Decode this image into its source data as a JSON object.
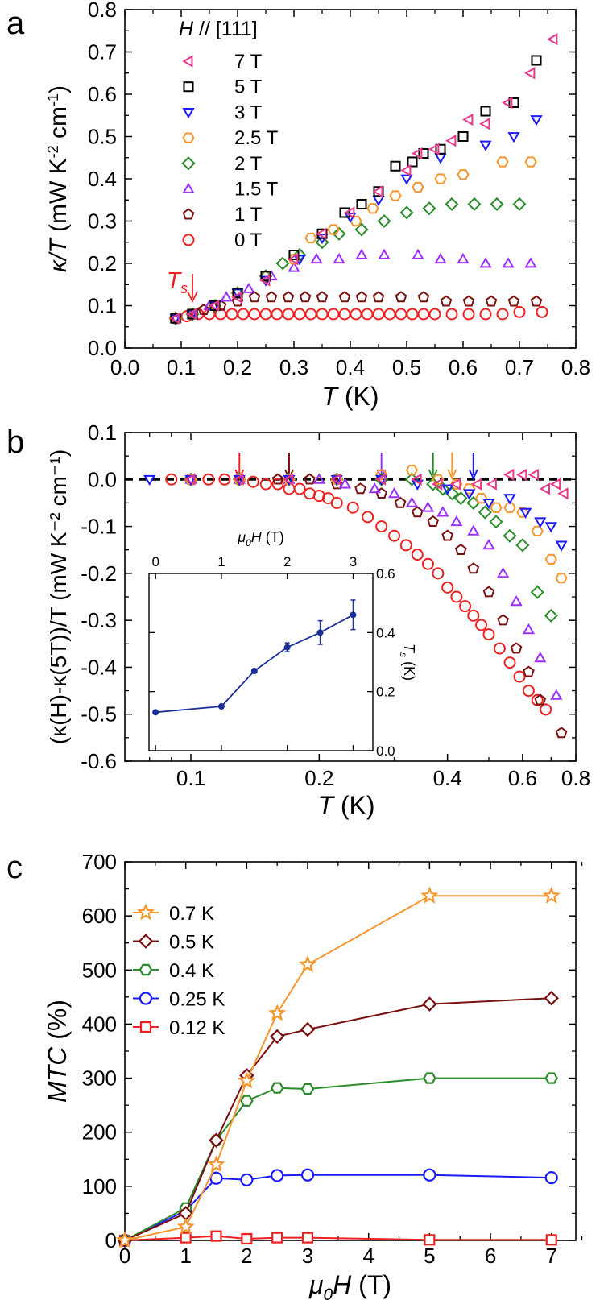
{
  "chart_data": [
    {
      "panel": "a",
      "type": "scatter",
      "panel_label": "a",
      "xlabel": {
        "italic": "T",
        "plain": " (K)"
      },
      "ylabel": {
        "italic": "κ/T",
        "plain": " (mW K",
        "sup1": "-2",
        "mid": " cm",
        "sup2": "-1",
        "end": ")"
      },
      "xlim": [
        0.0,
        0.8
      ],
      "ylim": [
        0.0,
        0.8
      ],
      "xticks": [
        "0.0",
        "0.1",
        "0.2",
        "0.3",
        "0.4",
        "0.5",
        "0.6",
        "0.7",
        "0.8"
      ],
      "yticks": [
        "0.0",
        "0.1",
        "0.2",
        "0.3",
        "0.4",
        "0.5",
        "0.6",
        "0.7",
        "0.8"
      ],
      "legend_title": {
        "italic": "H",
        "plain": " // [111]"
      },
      "annotation": {
        "italic": "T",
        "sub": "s"
      },
      "series": [
        {
          "name": "7 T",
          "marker": "triangle-left",
          "color": "#e8388a",
          "x": [
            0.09,
            0.12,
            0.16,
            0.2,
            0.25,
            0.3,
            0.35,
            0.4,
            0.45,
            0.5,
            0.52,
            0.55,
            0.58,
            0.61,
            0.64,
            0.68,
            0.72,
            0.76
          ],
          "y": [
            0.07,
            0.08,
            0.1,
            0.12,
            0.16,
            0.21,
            0.27,
            0.32,
            0.37,
            0.42,
            0.46,
            0.47,
            0.49,
            0.54,
            0.53,
            0.58,
            0.65,
            0.73
          ]
        },
        {
          "name": "5 T",
          "marker": "square",
          "color": "#000000",
          "x": [
            0.09,
            0.12,
            0.16,
            0.2,
            0.25,
            0.3,
            0.35,
            0.39,
            0.42,
            0.45,
            0.48,
            0.51,
            0.53,
            0.56,
            0.6,
            0.64,
            0.69,
            0.73
          ],
          "y": [
            0.07,
            0.08,
            0.1,
            0.13,
            0.17,
            0.22,
            0.27,
            0.32,
            0.34,
            0.37,
            0.43,
            0.44,
            0.46,
            0.47,
            0.5,
            0.56,
            0.58,
            0.68
          ]
        },
        {
          "name": "3 T",
          "marker": "triangle-down",
          "color": "#1a1aff",
          "x": [
            0.09,
            0.12,
            0.16,
            0.2,
            0.25,
            0.31,
            0.35,
            0.4,
            0.45,
            0.5,
            0.56,
            0.64,
            0.69,
            0.73
          ],
          "y": [
            0.07,
            0.08,
            0.1,
            0.13,
            0.16,
            0.21,
            0.26,
            0.31,
            0.35,
            0.4,
            0.45,
            0.48,
            0.5,
            0.54
          ]
        },
        {
          "name": "2.5 T",
          "marker": "hexagon",
          "color": "#f7962e",
          "x": [
            0.09,
            0.12,
            0.16,
            0.2,
            0.25,
            0.3,
            0.33,
            0.37,
            0.41,
            0.44,
            0.48,
            0.52,
            0.56,
            0.6,
            0.67,
            0.72
          ],
          "y": [
            0.07,
            0.08,
            0.1,
            0.13,
            0.17,
            0.21,
            0.26,
            0.28,
            0.3,
            0.33,
            0.36,
            0.38,
            0.4,
            0.41,
            0.44,
            0.44
          ]
        },
        {
          "name": "2 T",
          "marker": "diamond",
          "color": "#2a8c2a",
          "x": [
            0.09,
            0.12,
            0.16,
            0.2,
            0.25,
            0.28,
            0.31,
            0.35,
            0.38,
            0.42,
            0.46,
            0.5,
            0.54,
            0.58,
            0.62,
            0.66,
            0.7
          ],
          "y": [
            0.07,
            0.08,
            0.1,
            0.13,
            0.17,
            0.2,
            0.22,
            0.25,
            0.27,
            0.28,
            0.3,
            0.32,
            0.33,
            0.34,
            0.34,
            0.34,
            0.34
          ]
        },
        {
          "name": "1.5 T",
          "marker": "triangle-up",
          "color": "#9b30ff",
          "x": [
            0.09,
            0.12,
            0.15,
            0.18,
            0.22,
            0.26,
            0.3,
            0.34,
            0.38,
            0.42,
            0.46,
            0.52,
            0.56,
            0.6,
            0.64,
            0.68,
            0.72
          ],
          "y": [
            0.07,
            0.08,
            0.1,
            0.12,
            0.14,
            0.17,
            0.19,
            0.21,
            0.21,
            0.22,
            0.22,
            0.22,
            0.21,
            0.21,
            0.2,
            0.2,
            0.2
          ]
        },
        {
          "name": "1 T",
          "marker": "pentagon",
          "color": "#7a1010",
          "x": [
            0.09,
            0.12,
            0.14,
            0.17,
            0.2,
            0.23,
            0.26,
            0.29,
            0.32,
            0.35,
            0.39,
            0.42,
            0.45,
            0.49,
            0.53,
            0.57,
            0.61,
            0.65,
            0.69,
            0.73
          ],
          "y": [
            0.07,
            0.08,
            0.09,
            0.1,
            0.11,
            0.12,
            0.12,
            0.12,
            0.12,
            0.12,
            0.12,
            0.12,
            0.12,
            0.12,
            0.12,
            0.11,
            0.11,
            0.11,
            0.11,
            0.11
          ]
        },
        {
          "name": "0 T",
          "marker": "circle",
          "color": "#ee2020",
          "x": [
            0.09,
            0.11,
            0.13,
            0.15,
            0.17,
            0.19,
            0.21,
            0.23,
            0.25,
            0.27,
            0.29,
            0.31,
            0.33,
            0.35,
            0.37,
            0.39,
            0.41,
            0.43,
            0.45,
            0.47,
            0.49,
            0.51,
            0.53,
            0.55,
            0.58,
            0.61,
            0.64,
            0.67,
            0.7,
            0.74
          ],
          "y": [
            0.07,
            0.075,
            0.08,
            0.08,
            0.08,
            0.08,
            0.08,
            0.08,
            0.08,
            0.08,
            0.08,
            0.08,
            0.08,
            0.08,
            0.08,
            0.08,
            0.08,
            0.08,
            0.08,
            0.08,
            0.08,
            0.08,
            0.08,
            0.08,
            0.08,
            0.08,
            0.08,
            0.08,
            0.085,
            0.085
          ]
        }
      ]
    },
    {
      "panel": "b",
      "type": "scatter",
      "panel_label": "b",
      "xscale": "log",
      "xlabel": {
        "italic": "T",
        "plain": " (K)"
      },
      "ylabel": "(κ(H)-κ(5T))/T (mW K⁻² cm⁻¹)",
      "xlim": [
        0.07,
        0.8
      ],
      "ylim": [
        -0.6,
        0.1
      ],
      "xticks": [
        {
          "v": 0.1,
          "t": "0.1"
        },
        {
          "v": 0.2,
          "t": "0.2"
        },
        {
          "v": 0.4,
          "t": "0.4"
        },
        {
          "v": 0.6,
          "t": "0.6"
        },
        {
          "v": 0.8,
          "t": "0.8"
        }
      ],
      "yticks": [
        "0.1",
        "0.0",
        "-0.1",
        "-0.2",
        "-0.3",
        "-0.4",
        "-0.5",
        "-0.6"
      ],
      "arrows": [
        {
          "x": 0.13,
          "color": "#ee2020"
        },
        {
          "x": 0.17,
          "color": "#7a1010"
        },
        {
          "x": 0.28,
          "color": "#9b30ff"
        },
        {
          "x": 0.37,
          "color": "#2a8c2a"
        },
        {
          "x": 0.41,
          "color": "#f7962e"
        },
        {
          "x": 0.46,
          "color": "#1a1aff"
        }
      ],
      "series": [
        {
          "name": "7 T",
          "marker": "triangle-left",
          "color": "#e8388a",
          "x": [
            0.1,
            0.13,
            0.17,
            0.22,
            0.28,
            0.34,
            0.38,
            0.42,
            0.47,
            0.51,
            0.56,
            0.6,
            0.64,
            0.68,
            0.72,
            0.75
          ],
          "y": [
            0,
            0,
            0,
            0,
            0,
            0,
            -0.01,
            -0.01,
            -0.01,
            -0.01,
            0.01,
            0.01,
            0.01,
            -0.02,
            -0.01,
            -0.03
          ]
        },
        {
          "name": "3 T",
          "marker": "triangle-down",
          "color": "#1a1aff",
          "x": [
            0.08,
            0.1,
            0.13,
            0.17,
            0.22,
            0.28,
            0.34,
            0.4,
            0.45,
            0.5,
            0.56,
            0.61,
            0.66,
            0.7,
            0.74
          ],
          "y": [
            0,
            0,
            0,
            0,
            0,
            0,
            -0.01,
            -0.02,
            -0.03,
            -0.05,
            -0.04,
            -0.07,
            -0.09,
            -0.1,
            -0.14
          ]
        },
        {
          "name": "2.5 T",
          "marker": "hexagon",
          "color": "#f7962e",
          "x": [
            0.1,
            0.13,
            0.17,
            0.22,
            0.28,
            0.33,
            0.38,
            0.42,
            0.45,
            0.48,
            0.52,
            0.56,
            0.6,
            0.65,
            0.7,
            0.74
          ],
          "y": [
            0,
            0,
            0,
            0,
            0.01,
            0.02,
            0,
            -0.01,
            -0.02,
            -0.04,
            -0.06,
            -0.06,
            -0.07,
            -0.11,
            -0.17,
            -0.21
          ]
        },
        {
          "name": "2 T",
          "marker": "diamond",
          "color": "#2a8c2a",
          "x": [
            0.1,
            0.13,
            0.17,
            0.22,
            0.28,
            0.33,
            0.37,
            0.39,
            0.41,
            0.43,
            0.46,
            0.49,
            0.52,
            0.56,
            0.6,
            0.65,
            0.7
          ],
          "y": [
            0,
            0,
            0,
            0,
            0,
            0,
            -0.01,
            -0.02,
            -0.03,
            -0.04,
            -0.05,
            -0.07,
            -0.09,
            -0.12,
            -0.14,
            -0.24,
            -0.29
          ]
        },
        {
          "name": "1.5 T",
          "marker": "triangle-up",
          "color": "#9b30ff",
          "x": [
            0.1,
            0.13,
            0.17,
            0.2,
            0.23,
            0.27,
            0.3,
            0.33,
            0.36,
            0.39,
            0.42,
            0.46,
            0.5,
            0.54,
            0.58,
            0.62,
            0.66,
            0.72
          ],
          "y": [
            0,
            0,
            0,
            0,
            -0.01,
            -0.02,
            -0.03,
            -0.05,
            -0.06,
            -0.07,
            -0.09,
            -0.11,
            -0.14,
            -0.2,
            -0.26,
            -0.32,
            -0.38,
            -0.46
          ]
        },
        {
          "name": "1 T",
          "marker": "pentagon",
          "color": "#7a1010",
          "x": [
            0.1,
            0.13,
            0.16,
            0.19,
            0.22,
            0.25,
            0.28,
            0.31,
            0.34,
            0.37,
            0.4,
            0.43,
            0.46,
            0.5,
            0.54,
            0.58,
            0.62,
            0.66,
            0.74
          ],
          "y": [
            0,
            0,
            0,
            0,
            -0.01,
            -0.02,
            -0.03,
            -0.05,
            -0.07,
            -0.09,
            -0.12,
            -0.15,
            -0.19,
            -0.24,
            -0.3,
            -0.36,
            -0.41,
            -0.47,
            -0.54
          ]
        },
        {
          "name": "0 T",
          "marker": "circle",
          "color": "#ee2020",
          "x": [
            0.09,
            0.1,
            0.11,
            0.12,
            0.13,
            0.14,
            0.15,
            0.16,
            0.17,
            0.18,
            0.19,
            0.2,
            0.21,
            0.22,
            0.24,
            0.26,
            0.28,
            0.3,
            0.32,
            0.34,
            0.36,
            0.38,
            0.4,
            0.42,
            0.44,
            0.46,
            0.48,
            0.5,
            0.53,
            0.56,
            0.59,
            0.62,
            0.65,
            0.68
          ],
          "y": [
            0,
            0,
            0,
            0,
            0,
            -0.005,
            -0.01,
            -0.01,
            -0.02,
            -0.02,
            -0.03,
            -0.035,
            -0.04,
            -0.05,
            -0.06,
            -0.08,
            -0.1,
            -0.12,
            -0.14,
            -0.16,
            -0.18,
            -0.2,
            -0.23,
            -0.25,
            -0.27,
            -0.29,
            -0.31,
            -0.33,
            -0.36,
            -0.39,
            -0.42,
            -0.45,
            -0.47,
            -0.49
          ]
        }
      ],
      "inset": {
        "type": "line",
        "xlabel": {
          "italic": "μ",
          "sub": "0",
          "italic2": "H",
          "plain": " (T)"
        },
        "ylabel": {
          "italic": "T",
          "sub": "s",
          "plain": " (K)"
        },
        "xlim": [
          -0.1,
          3.3
        ],
        "ylim": [
          0.0,
          0.6
        ],
        "xticks": [
          "0",
          "1",
          "2",
          "3"
        ],
        "yticks": [
          "0.0",
          "0.2",
          "0.4",
          "0.6"
        ],
        "color": "#1a2f9a",
        "x": [
          0,
          1,
          1.5,
          2,
          2.5,
          3
        ],
        "y": [
          0.13,
          0.15,
          0.27,
          0.35,
          0.4,
          0.46
        ],
        "err": [
          0.005,
          0.005,
          0.005,
          0.015,
          0.04,
          0.05
        ]
      }
    },
    {
      "panel": "c",
      "type": "line",
      "panel_label": "c",
      "xlabel": {
        "italic": "μ",
        "sub": "0",
        "italic2": "H",
        "plain": " (T)"
      },
      "ylabel": {
        "italic": "MTC",
        "plain": " (%)"
      },
      "xlim": [
        0,
        7.4
      ],
      "ylim": [
        0,
        700
      ],
      "xticks": [
        "0",
        "1",
        "2",
        "3",
        "4",
        "5",
        "6",
        "7"
      ],
      "yticks": [
        "0",
        "100",
        "200",
        "300",
        "400",
        "500",
        "600",
        "700"
      ],
      "x": [
        0,
        1,
        1.5,
        2,
        2.5,
        3,
        5,
        7
      ],
      "series": [
        {
          "name": "0.7 K",
          "marker": "star",
          "color": "#f7962e",
          "values": [
            0,
            25,
            140,
            295,
            420,
            510,
            637,
            637
          ]
        },
        {
          "name": "0.5 K",
          "marker": "diamond",
          "color": "#7a1010",
          "values": [
            0,
            50,
            185,
            305,
            377,
            390,
            437,
            448
          ]
        },
        {
          "name": "0.4 K",
          "marker": "hexagon",
          "color": "#2a8c2a",
          "values": [
            0,
            60,
            185,
            258,
            282,
            280,
            300,
            300
          ]
        },
        {
          "name": "0.25 K",
          "marker": "circle",
          "color": "#1a1aff",
          "values": [
            0,
            55,
            115,
            112,
            120,
            121,
            121,
            116
          ]
        },
        {
          "name": "0.12 K",
          "marker": "square",
          "color": "#ee2020",
          "values": [
            0,
            5,
            8,
            3,
            5,
            5,
            1,
            1
          ]
        }
      ]
    }
  ]
}
